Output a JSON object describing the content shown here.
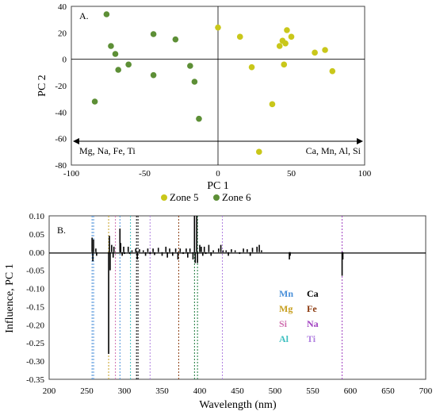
{
  "charts": [
    {
      "type": "scatter",
      "panel_label": "A.",
      "xlabel": "PC 1",
      "ylabel": "PC 2",
      "xlim": [
        -100,
        100
      ],
      "ylim": [
        -80,
        40
      ],
      "xticks": [
        -100,
        -50,
        0,
        50,
        100
      ],
      "yticks": [
        -80,
        -60,
        -40,
        -20,
        0,
        20,
        40
      ],
      "arrow_left_label": "Mg, Na, Fe, Ti",
      "arrow_right_label": "Ca, Mn, Al, Si",
      "legend": [
        "Zone 5",
        "Zone 6"
      ],
      "series": [
        {
          "name": "Zone 5",
          "color": "#c9c71a",
          "points": [
            [
              0,
              24
            ],
            [
              15,
              17
            ],
            [
              23,
              -6
            ],
            [
              28,
              -70
            ],
            [
              37,
              -34
            ],
            [
              42,
              10
            ],
            [
              44,
              14
            ],
            [
              45,
              -4
            ],
            [
              46,
              12
            ],
            [
              47,
              22
            ],
            [
              50,
              17
            ],
            [
              66,
              5
            ],
            [
              73,
              7
            ],
            [
              78,
              -9
            ]
          ]
        },
        {
          "name": "Zone 6",
          "color": "#5d8f36",
          "points": [
            [
              -84,
              -32
            ],
            [
              -76,
              34
            ],
            [
              -73,
              10
            ],
            [
              -70,
              4
            ],
            [
              -68,
              -8
            ],
            [
              -61,
              -4
            ],
            [
              -44,
              19
            ],
            [
              -44,
              -12
            ],
            [
              -29,
              15
            ],
            [
              -19,
              -5
            ],
            [
              -16,
              -17
            ],
            [
              -13,
              -45
            ]
          ]
        }
      ]
    },
    {
      "type": "line",
      "panel_label": "B.",
      "xlabel": "Wavelength (nm)",
      "ylabel": "Influence, PC 1",
      "xlim": [
        200,
        700
      ],
      "ylim": [
        -0.35,
        0.1
      ],
      "xticks": [
        200,
        250,
        300,
        350,
        400,
        450,
        500,
        550,
        600,
        650,
        700
      ],
      "yticks": [
        0.1,
        0.05,
        0.0,
        -0.05,
        -0.1,
        -0.15,
        -0.2,
        -0.25,
        -0.3,
        -0.35
      ],
      "element_lines": [
        {
          "element": "Mn",
          "color": "#4a90d9",
          "x": [
            257,
            259
          ]
        },
        {
          "element": "Mg",
          "color": "#c8a020",
          "x": [
            279
          ]
        },
        {
          "element": "Si",
          "color": "#d070b0",
          "x": [
            288
          ]
        },
        {
          "element": "Al",
          "color": "#40c0c0",
          "x": [
            308
          ]
        },
        {
          "element": "Ca",
          "color": "#000000",
          "x": [
            316,
            318
          ]
        },
        {
          "element": "Fe",
          "color": "#8b3a0e",
          "x": [
            372
          ]
        },
        {
          "element": "Na",
          "color": "#a040c0",
          "x": [
            589
          ]
        },
        {
          "element": "Ti",
          "color": "#b080e0",
          "x": [
            334,
            430
          ]
        },
        {
          "element": "Ca2",
          "color": "#1a7a3a",
          "x": [
            393,
            397
          ]
        },
        {
          "element": "Mn2",
          "color": "#4a90d9",
          "x": [
            294
          ]
        }
      ],
      "legend_elements": [
        {
          "label": "Mn",
          "color": "#4a90d9"
        },
        {
          "label": "Ca",
          "color": "#000000"
        },
        {
          "label": "Mg",
          "color": "#c8a020"
        },
        {
          "label": "Fe",
          "color": "#8b3a0e"
        },
        {
          "label": "Si",
          "color": "#d070b0"
        },
        {
          "label": "Na",
          "color": "#a040c0"
        },
        {
          "label": "Al",
          "color": "#40c0c0"
        },
        {
          "label": "Ti",
          "color": "#b080e0"
        }
      ],
      "peaks": [
        [
          257,
          0.04
        ],
        [
          258,
          -0.025
        ],
        [
          259,
          0.035
        ],
        [
          262,
          0.01
        ],
        [
          263,
          -0.01
        ],
        [
          279,
          -0.28
        ],
        [
          280,
          0.045
        ],
        [
          281,
          -0.05
        ],
        [
          283,
          0.02
        ],
        [
          285,
          -0.015
        ],
        [
          286,
          0.015
        ],
        [
          294,
          0.065
        ],
        [
          295,
          0.025
        ],
        [
          297,
          -0.01
        ],
        [
          299,
          0.015
        ],
        [
          300,
          -0.005
        ],
        [
          305,
          0.015
        ],
        [
          307,
          -0.005
        ],
        [
          310,
          0.005
        ],
        [
          315,
          0.01
        ],
        [
          317,
          -0.02
        ],
        [
          320,
          0.008
        ],
        [
          325,
          0.005
        ],
        [
          328,
          -0.01
        ],
        [
          331,
          0.01
        ],
        [
          334,
          -0.005
        ],
        [
          338,
          0.01
        ],
        [
          340,
          -0.008
        ],
        [
          345,
          0.012
        ],
        [
          350,
          -0.01
        ],
        [
          355,
          0.015
        ],
        [
          357,
          -0.015
        ],
        [
          360,
          0.01
        ],
        [
          364,
          -0.01
        ],
        [
          368,
          0.01
        ],
        [
          371,
          -0.02
        ],
        [
          374,
          0.01
        ],
        [
          378,
          -0.005
        ],
        [
          382,
          0.01
        ],
        [
          384,
          -0.015
        ],
        [
          387,
          0.01
        ],
        [
          391,
          -0.02
        ],
        [
          393,
          0.1
        ],
        [
          394,
          -0.03
        ],
        [
          396,
          0.1
        ],
        [
          397,
          -0.03
        ],
        [
          400,
          0.02
        ],
        [
          402,
          0.015
        ],
        [
          404,
          -0.01
        ],
        [
          406,
          0.015
        ],
        [
          408,
          -0.005
        ],
        [
          412,
          0.02
        ],
        [
          415,
          -0.01
        ],
        [
          418,
          0.005
        ],
        [
          425,
          0.01
        ],
        [
          428,
          0.02
        ],
        [
          431,
          0.005
        ],
        [
          435,
          0.005
        ],
        [
          438,
          -0.01
        ],
        [
          442,
          0.008
        ],
        [
          447,
          0.005
        ],
        [
          453,
          -0.005
        ],
        [
          458,
          0.01
        ],
        [
          463,
          0.008
        ],
        [
          467,
          -0.01
        ],
        [
          470,
          0.012
        ],
        [
          476,
          0.015
        ],
        [
          479,
          0.02
        ],
        [
          482,
          0.005
        ],
        [
          519,
          -0.02
        ],
        [
          520,
          -0.01
        ],
        [
          589,
          -0.065
        ],
        [
          590,
          -0.02
        ]
      ]
    }
  ]
}
